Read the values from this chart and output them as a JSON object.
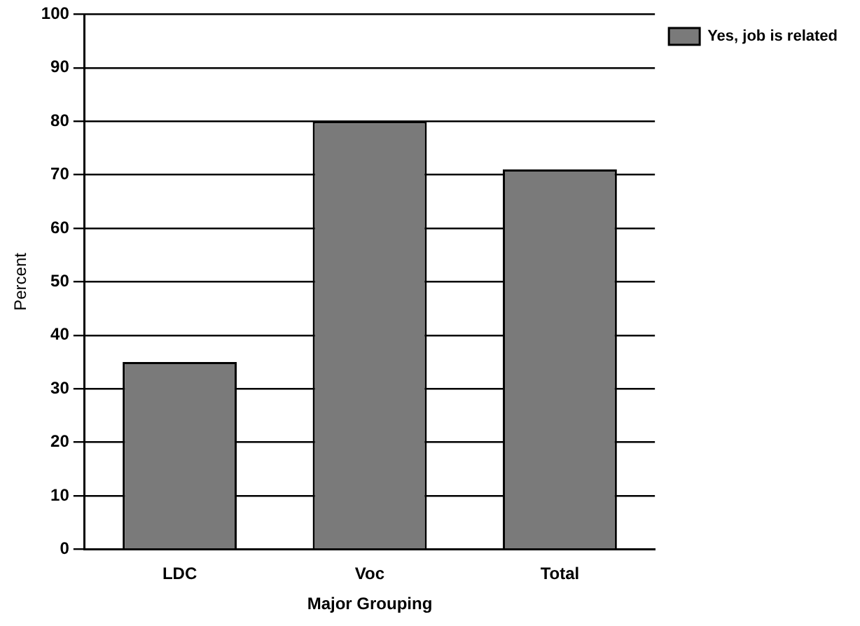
{
  "chart_data": {
    "type": "bar",
    "xlabel": "Major Grouping",
    "ylabel": "Percent",
    "categories": [
      "LDC",
      "Voc",
      "Total"
    ],
    "series": [
      {
        "name": "Yes, job is related",
        "color": "#7a7a7a",
        "values": [
          35,
          80,
          71
        ]
      }
    ],
    "ylim": [
      0,
      100
    ],
    "yticks": [
      0,
      10,
      20,
      30,
      40,
      50,
      60,
      70,
      80,
      90,
      100
    ],
    "grid": "y",
    "legend": "top right"
  }
}
